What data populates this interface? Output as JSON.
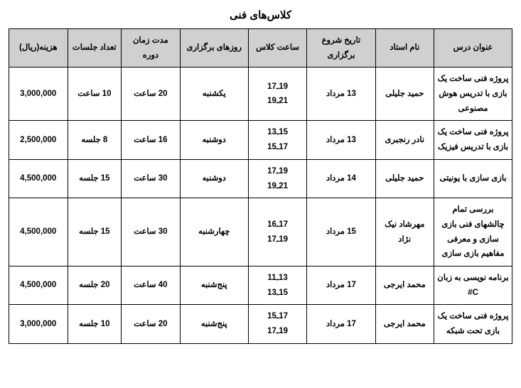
{
  "title": "کلاس‌های فنی",
  "columns": [
    "عنوان درس",
    "نام استاد",
    "تاریخ شروع برگزاری",
    "ساعت کلاس",
    "روزهای برگزاری",
    "مدت زمان دوره",
    "تعداد جلسات",
    "هزینه(ریال)"
  ],
  "column_widths_pct": [
    16,
    12,
    14,
    12,
    14,
    12,
    11,
    12
  ],
  "header_bg": "#d0d0d0",
  "border_color": "#000000",
  "background_color": "#ffffff",
  "font_family": "Tahoma",
  "title_fontsize": 15,
  "cell_fontsize": 11.5,
  "rows": [
    {
      "course": "پروژه فنی ساخت یک بازی با تدریس هوش مصنوعی",
      "teacher": "حمید جلیلی",
      "start": "13 مرداد",
      "time": "19ـ17\n21ـ19",
      "days": "یکشنبه",
      "duration": "20 ساعت",
      "sessions": "10 ساعت",
      "cost": "3,000,000"
    },
    {
      "course": "پروژه فنی ساخت یک بازی با تدریس فیزیک",
      "teacher": "نادر رنجبری",
      "start": "13 مرداد",
      "time": "15ـ13\n17ـ15",
      "days": "دوشنبه",
      "duration": "16 ساعت",
      "sessions": "8 جلسه",
      "cost": "2,500,000"
    },
    {
      "course": "بازی سازی با یونیتی",
      "teacher": "حمید جلیلی",
      "start": "14 مرداد",
      "time": "19ـ17\n21ـ19",
      "days": "دوشنبه",
      "duration": "30 ساعت",
      "sessions": "15 جلسه",
      "cost": "4,500,000"
    },
    {
      "course": "بررسی تمام چالشهای فنی بازی سازی و معرفی مفاهیم بازی سازی",
      "teacher": "مهرشاد نیک نژاد",
      "start": "15 مرداد",
      "time": "17ـ16\n19ـ17",
      "days": "چهارشنبه",
      "duration": "30 ساعت",
      "sessions": "15 جلسه",
      "cost": "4,500,000"
    },
    {
      "course": "برنامه نویسی به زبان C#",
      "teacher": "محمد ایرجی",
      "start": "17 مرداد",
      "time": "13ـ11\n15ـ13",
      "days": "پنج‌شنبه",
      "duration": "40 ساعت",
      "sessions": "20 جلسه",
      "cost": "4,500,000"
    },
    {
      "course": "پروژه فنی ساخت یک بازی تحت شبکه",
      "teacher": "محمد ایرجی",
      "start": "17 مرداد",
      "time": "17ـ15\n19ـ17",
      "days": "پنج‌شنبه",
      "duration": "20 ساعت",
      "sessions": "10 جلسه",
      "cost": "3,000,000"
    }
  ]
}
